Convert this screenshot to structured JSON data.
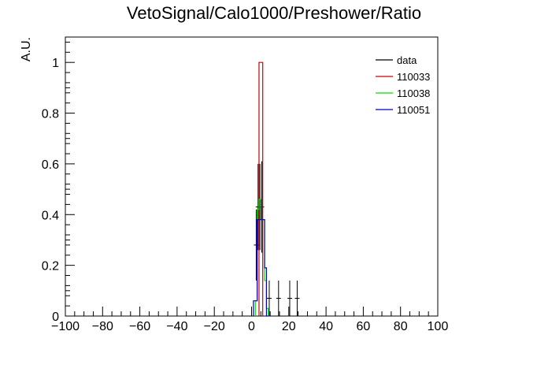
{
  "chart_data": {
    "type": "histogram",
    "title": "VetoSignal/Calo1000/Preshower/Ratio",
    "xlabel": "",
    "ylabel": "A.U.",
    "xlim": [
      -100,
      100
    ],
    "ylim": [
      0,
      1.1
    ],
    "x_major_ticks": [
      -100,
      -80,
      -60,
      -40,
      -20,
      0,
      20,
      40,
      60,
      80,
      100
    ],
    "x_tick_labels": [
      "−100",
      "−80",
      "−60",
      "−40",
      "−20",
      "0",
      "20",
      "40",
      "60",
      "80",
      "100"
    ],
    "y_major_ticks": [
      0,
      0.2,
      0.4,
      0.6,
      0.8,
      1
    ],
    "y_tick_labels": [
      "0",
      "0.2",
      "0.4",
      "0.6",
      "0.8",
      "1"
    ],
    "grid": false,
    "legend_position": "top-right",
    "colors": {
      "data": "#000000",
      "110033": "#cc0000",
      "110038": "#00dd00",
      "110051": "#0000cc",
      "frame": "#000000"
    },
    "series": [
      {
        "name": "data",
        "style": "points",
        "points": [
          {
            "x": 2.5,
            "y": 0.28,
            "err": 0.14
          },
          {
            "x": 3.5,
            "y": 0.43,
            "err": 0.17
          },
          {
            "x": 5.5,
            "y": 0.43,
            "err": 0.18
          },
          {
            "x": 4.5,
            "y": 0.43,
            "err": 0.17
          },
          {
            "x": 9.5,
            "y": 0.07,
            "err": 0.07
          },
          {
            "x": 14.5,
            "y": 0.07,
            "err": 0.07
          },
          {
            "x": 20.5,
            "y": 0.07,
            "err": 0.07
          },
          {
            "x": 24.5,
            "y": 0.07,
            "err": 0.07
          }
        ]
      },
      {
        "name": "110033",
        "style": "step",
        "bins": [
          [
            4,
            6,
            1.0
          ]
        ]
      },
      {
        "name": "110038",
        "style": "step",
        "bins": [
          [
            2,
            3,
            0.06
          ],
          [
            3,
            4,
            0.42
          ],
          [
            4,
            5,
            0.46
          ],
          [
            5,
            6,
            0.38
          ],
          [
            6,
            7,
            0.38
          ],
          [
            7,
            8,
            0.14
          ],
          [
            8,
            9,
            0.03
          ]
        ]
      },
      {
        "name": "110051",
        "style": "step",
        "bins": [
          [
            1,
            2,
            0.06
          ],
          [
            2,
            3,
            0.06
          ],
          [
            3,
            4,
            0.38
          ],
          [
            4,
            5,
            0.38
          ],
          [
            5,
            6,
            0.38
          ],
          [
            6,
            7,
            0.38
          ],
          [
            7,
            8,
            0.19
          ],
          [
            8,
            9,
            0.0
          ]
        ]
      }
    ]
  }
}
